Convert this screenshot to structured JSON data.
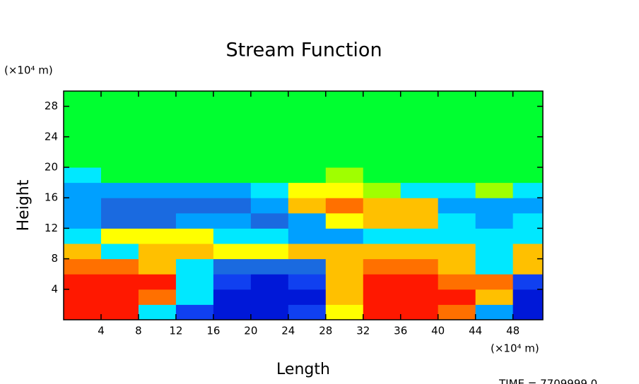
{
  "chart_data": {
    "type": "contour",
    "title": "Stream Function",
    "x_label": "Length",
    "y_label": "Height",
    "x_unit": "(×10⁴ m)",
    "y_unit": "(×10⁴ m)",
    "footer": "TIME = 7709999.0",
    "x": [
      2,
      6,
      10,
      14,
      18,
      22,
      26,
      30,
      34,
      38,
      42,
      46,
      50
    ],
    "y": [
      1,
      3,
      5,
      7,
      9,
      11,
      13,
      15,
      17,
      19,
      21,
      23,
      25,
      27,
      29
    ],
    "z": [
      [
        10,
        10,
        4,
        1,
        0,
        0,
        1,
        7,
        10,
        10,
        9,
        3,
        0
      ],
      [
        10,
        10,
        9,
        4,
        0,
        0,
        0,
        8,
        10,
        10,
        10,
        8,
        0
      ],
      [
        10,
        10,
        10,
        4,
        1,
        0,
        1,
        8,
        10,
        10,
        9,
        9,
        1
      ],
      [
        9,
        9,
        8,
        4,
        2,
        2,
        2,
        8,
        9,
        9,
        8,
        4,
        8
      ],
      [
        8,
        4,
        8,
        8,
        7,
        7,
        8,
        8,
        8,
        8,
        8,
        4,
        8
      ],
      [
        4,
        7,
        7,
        7,
        4,
        4,
        3,
        3,
        4,
        4,
        4,
        4,
        4
      ],
      [
        3,
        2,
        2,
        3,
        3,
        2,
        3,
        7,
        8,
        8,
        4,
        3,
        4
      ],
      [
        3,
        2,
        2,
        2,
        2,
        3,
        8,
        9,
        8,
        8,
        3,
        3,
        3
      ],
      [
        3,
        3,
        3,
        3,
        3,
        4,
        7,
        7,
        6,
        4,
        4,
        6,
        4
      ],
      [
        4,
        5,
        5,
        5,
        5,
        5,
        5,
        6,
        5,
        5,
        5,
        5,
        5
      ],
      [
        5,
        5,
        5,
        5,
        5,
        5,
        5,
        5,
        5,
        5,
        5,
        5,
        5
      ],
      [
        5,
        5,
        5,
        5,
        5,
        5,
        5,
        5,
        5,
        5,
        5,
        5,
        5
      ],
      [
        5,
        5,
        5,
        5,
        5,
        5,
        5,
        5,
        5,
        5,
        5,
        5,
        5
      ],
      [
        5,
        5,
        5,
        5,
        5,
        5,
        5,
        5,
        5,
        5,
        5,
        5,
        5
      ],
      [
        5,
        5,
        5,
        5,
        5,
        5,
        5,
        5,
        5,
        5,
        5,
        5,
        5
      ]
    ],
    "palette": [
      "#0018d8",
      "#1040f0",
      "#1a6ae0",
      "#00a0ff",
      "#00e8ff",
      "#00ff30",
      "#a0ff00",
      "#ffff00",
      "#ffc000",
      "#ff7000",
      "#ff1800"
    ],
    "xlim": [
      0,
      51.2
    ],
    "ylim": [
      0,
      30
    ],
    "xticks": [
      4,
      8,
      12,
      16,
      20,
      24,
      28,
      32,
      36,
      40,
      44,
      48
    ],
    "yticks": [
      4,
      8,
      12,
      16,
      20,
      24,
      28
    ]
  }
}
